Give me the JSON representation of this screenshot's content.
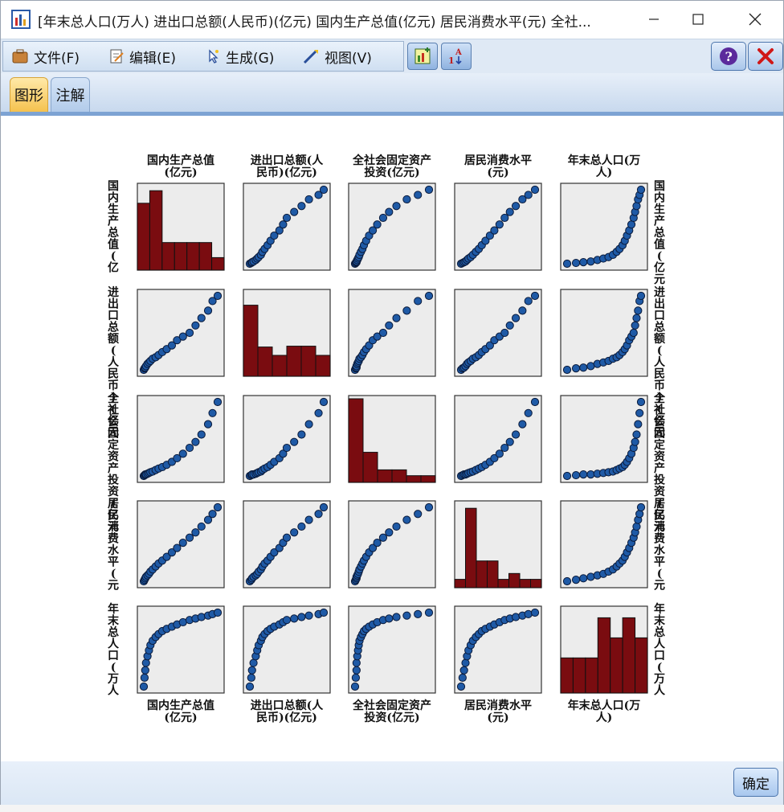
{
  "window": {
    "title": "[年末总人口(万人) 进出口总额(人民币)(亿元) 国内生产总值(亿元) 居民消费水平(元) 全社...",
    "min_glyph": "—",
    "max_glyph": "☐",
    "close_glyph": "✕"
  },
  "menu": {
    "file": "文件(F)",
    "edit": "编辑(E)",
    "generate": "生成(G)",
    "view": "视图(V)"
  },
  "tabs": {
    "graph": "图形",
    "notes": "注解"
  },
  "footer": {
    "ok": "确定"
  },
  "colors": {
    "histogram_bar": "#7a0c10",
    "point_fill": "#1f5aa6",
    "panel_bg": "#ececec"
  },
  "chart_data": {
    "type": "scatter",
    "variables": [
      "国内生产总值(亿元)",
      "进出口总额(人民币)(亿元)",
      "全社会固定资产投资(亿元)",
      "居民消费水平(元)",
      "年末总人口(万人)"
    ],
    "top_labels": [
      [
        "国内生产总值",
        "(亿元)"
      ],
      [
        "进出口总额(人",
        "民币)(亿元)"
      ],
      [
        "全社会固定资产",
        "投资(亿元)"
      ],
      [
        "居民消费水平",
        "(元)"
      ],
      [
        "年末总人口(万",
        "人)"
      ]
    ],
    "left_labels": [
      "国内生产总值(亿",
      "进出口总额(人民币)(亿元",
      "全社会固定资产投资(亿元",
      "居民消费水平(元",
      "年末总人口(万人"
    ],
    "right_labels": [
      "国内生产总值(亿元",
      "进出口总额(人民币)(亿元",
      "全社会固定资产投资(亿元",
      "居民消费水平(元",
      "年末总人口(万人"
    ],
    "histograms": [
      [
        0.8,
        0.95,
        0.33,
        0.33,
        0.33,
        0.33,
        0.15
      ],
      [
        0.85,
        0.35,
        0.25,
        0.36,
        0.36,
        0.25
      ],
      [
        1.0,
        0.36,
        0.15,
        0.15,
        0.08,
        0.08
      ],
      [
        0.1,
        0.95,
        0.32,
        0.32,
        0.1,
        0.17,
        0.1,
        0.1
      ],
      [
        0.42,
        0.42,
        0.42,
        0.9,
        0.66,
        0.9,
        0.66
      ]
    ],
    "series": [
      {
        "name": "国内生产总值(亿元)",
        "values": [
          0.0,
          0.01,
          0.02,
          0.03,
          0.05,
          0.07,
          0.09,
          0.12,
          0.16,
          0.2,
          0.25,
          0.31,
          0.38,
          0.45,
          0.53,
          0.62,
          0.7,
          0.78,
          0.87,
          0.93,
          1.0
        ]
      },
      {
        "name": "进出口总额(人民币)(亿元)",
        "values": [
          0.0,
          0.02,
          0.03,
          0.05,
          0.08,
          0.1,
          0.12,
          0.15,
          0.17,
          0.2,
          0.24,
          0.28,
          0.33,
          0.4,
          0.45,
          0.5,
          0.6,
          0.7,
          0.8,
          0.93,
          1.0
        ]
      },
      {
        "name": "全社会固定资产投资(亿元)",
        "values": [
          0.0,
          0.01,
          0.02,
          0.02,
          0.03,
          0.04,
          0.05,
          0.06,
          0.08,
          0.1,
          0.12,
          0.15,
          0.19,
          0.24,
          0.3,
          0.38,
          0.46,
          0.56,
          0.7,
          0.85,
          1.0
        ]
      },
      {
        "name": "居民消费水平(元)",
        "values": [
          0.0,
          0.02,
          0.04,
          0.06,
          0.08,
          0.1,
          0.13,
          0.16,
          0.2,
          0.24,
          0.28,
          0.33,
          0.39,
          0.45,
          0.52,
          0.59,
          0.66,
          0.74,
          0.83,
          0.91,
          1.0
        ]
      },
      {
        "name": "年末总人口(万人)",
        "values": [
          0.0,
          0.12,
          0.22,
          0.32,
          0.41,
          0.49,
          0.56,
          0.62,
          0.67,
          0.71,
          0.75,
          0.78,
          0.81,
          0.84,
          0.87,
          0.9,
          0.92,
          0.94,
          0.96,
          0.98,
          1.0
        ]
      }
    ]
  }
}
